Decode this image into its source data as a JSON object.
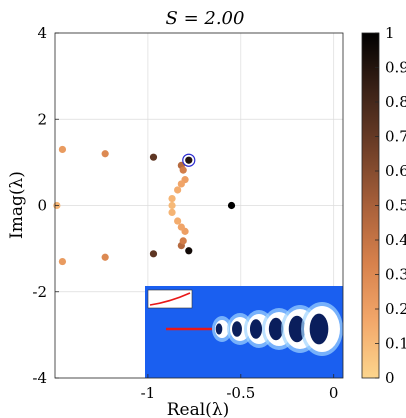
{
  "chart_data": {
    "type": "scatter",
    "title": "S = 2.00",
    "xlabel": "Real(λ)",
    "ylabel": "Imag(λ)",
    "xlim": [
      -1.5,
      0.05
    ],
    "ylim": [
      -4,
      4
    ],
    "xticks": [
      -1,
      -0.5,
      0
    ],
    "xtick_labels": [
      "-1",
      "-0.5",
      "0"
    ],
    "yticks": [
      -4,
      -2,
      0,
      2,
      4
    ],
    "ytick_labels": [
      "-4",
      "-2",
      "0",
      "2",
      "4"
    ],
    "grid": true,
    "colormap": [
      "#fcd58d",
      "#f2a76a",
      "#d7814c",
      "#a8603a",
      "#6f3f28",
      "#3b2217",
      "#000000"
    ],
    "colorbar": {
      "range": [
        0,
        1
      ],
      "ticks": [
        0,
        0.1,
        0.2,
        0.3,
        0.4,
        0.5,
        0.6,
        0.7,
        0.8,
        0.9,
        1
      ],
      "tick_labels": [
        "0",
        "0.1",
        "0.2",
        "0.3",
        "0.4",
        "0.5",
        "0.6",
        "0.7",
        "0.8",
        "0.9",
        "1"
      ]
    },
    "highlighted_point": {
      "x": -0.78,
      "y": 1.05
    },
    "points": [
      {
        "x": -1.46,
        "y": 1.3,
        "c": 0.22
      },
      {
        "x": -1.46,
        "y": -1.3,
        "c": 0.22
      },
      {
        "x": -1.23,
        "y": 1.2,
        "c": 0.3
      },
      {
        "x": -1.23,
        "y": -1.2,
        "c": 0.3
      },
      {
        "x": -1.49,
        "y": 0.0,
        "c": 0.12
      },
      {
        "x": -0.97,
        "y": 1.12,
        "c": 0.72
      },
      {
        "x": -0.97,
        "y": -1.12,
        "c": 0.72
      },
      {
        "x": -0.78,
        "y": 1.05,
        "c": 0.9
      },
      {
        "x": -0.78,
        "y": -1.05,
        "c": 0.95
      },
      {
        "x": -0.55,
        "y": 0.0,
        "c": 1.0
      },
      {
        "x": -0.82,
        "y": 0.93,
        "c": 0.45
      },
      {
        "x": -0.82,
        "y": -0.93,
        "c": 0.45
      },
      {
        "x": -0.81,
        "y": 0.82,
        "c": 0.35
      },
      {
        "x": -0.81,
        "y": -0.82,
        "c": 0.35
      },
      {
        "x": -0.8,
        "y": 0.6,
        "c": 0.2
      },
      {
        "x": -0.8,
        "y": -0.6,
        "c": 0.2
      },
      {
        "x": -0.82,
        "y": 0.5,
        "c": 0.18
      },
      {
        "x": -0.82,
        "y": -0.5,
        "c": 0.18
      },
      {
        "x": -0.84,
        "y": 0.36,
        "c": 0.15
      },
      {
        "x": -0.84,
        "y": -0.36,
        "c": 0.15
      },
      {
        "x": -0.87,
        "y": 0.16,
        "c": 0.12
      },
      {
        "x": -0.87,
        "y": -0.16,
        "c": 0.12
      },
      {
        "x": -0.87,
        "y": 0.0,
        "c": 0.1
      }
    ]
  },
  "inset": {
    "background": "#1a5ff0",
    "wake_line_color": "#e81818",
    "subplot_line_color": "#e81818"
  }
}
